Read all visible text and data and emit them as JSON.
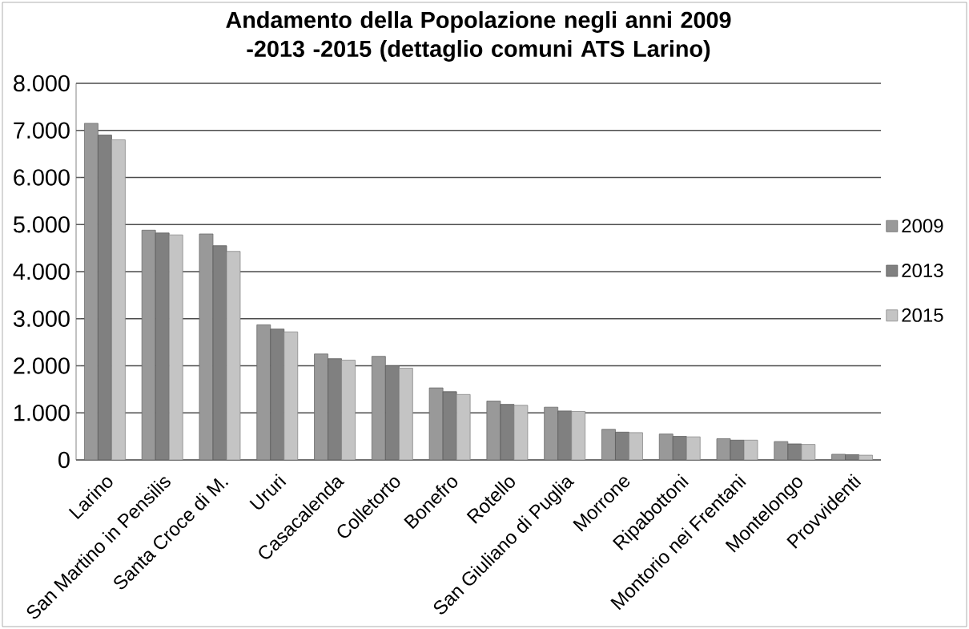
{
  "chart_data": {
    "type": "bar",
    "title": "Andamento della Popolazione negli anni 2009 -2013 -2015 (dettaglio comuni ATS Larino)",
    "categories": [
      "Larino",
      "San Martino in Pensilis",
      "Santa Croce di M.",
      "Ururi",
      "Casacalenda",
      "Colletorto",
      "Bonefro",
      "Rotello",
      "San Giuliano di Puglia",
      "Morrone",
      "Ripabottoni",
      "Montorio nei Frentani",
      "Montelongo",
      "Provvidenti"
    ],
    "series": [
      {
        "name": "2009",
        "color": "#999999",
        "values": [
          7150,
          4880,
          4800,
          2870,
          2250,
          2200,
          1530,
          1250,
          1120,
          650,
          550,
          450,
          390,
          120
        ]
      },
      {
        "name": "2013",
        "color": "#808080",
        "values": [
          6900,
          4820,
          4550,
          2780,
          2150,
          2000,
          1450,
          1180,
          1040,
          590,
          500,
          420,
          340,
          110
        ]
      },
      {
        "name": "2015",
        "color": "#c4c4c4",
        "values": [
          6800,
          4780,
          4430,
          2720,
          2120,
          1950,
          1390,
          1160,
          1030,
          580,
          490,
          420,
          330,
          100
        ]
      }
    ],
    "ylim": [
      0,
      8000
    ],
    "yticks": [
      0,
      {
        "value": 1000,
        "label": "1.000"
      },
      {
        "value": 2000,
        "label": "2.000"
      },
      {
        "value": 3000,
        "label": "3.000"
      },
      {
        "value": 4000,
        "label": "4.000"
      },
      {
        "value": 5000,
        "label": "5.000"
      },
      {
        "value": 6000,
        "label": "6.000"
      },
      {
        "value": 7000,
        "label": "7.000"
      },
      {
        "value": 8000,
        "label": "8.000"
      }
    ],
    "grid": "y",
    "legend": "right"
  }
}
